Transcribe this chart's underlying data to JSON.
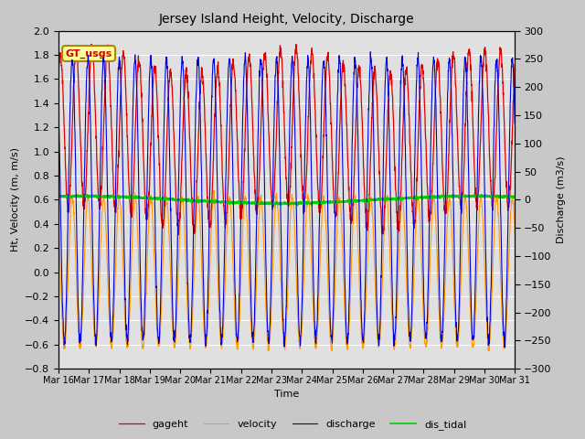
{
  "title": "Jersey Island Height, Velocity, Discharge",
  "xlabel": "Time",
  "ylabel_left": "Ht, Velocity (m, m/s)",
  "ylabel_right": "Discharge (m3/s)",
  "ylim_left": [
    -0.8,
    2.0
  ],
  "ylim_right": [
    -300,
    300
  ],
  "yticks_left": [
    -0.8,
    -0.6,
    -0.4,
    -0.2,
    0.0,
    0.2,
    0.4,
    0.6,
    0.8,
    1.0,
    1.2,
    1.4,
    1.6,
    1.8,
    2.0
  ],
  "yticks_right": [
    -300,
    -250,
    -200,
    -150,
    -100,
    -50,
    0,
    50,
    100,
    150,
    200,
    250,
    300
  ],
  "xtick_labels": [
    "Mar 16",
    "Mar 17",
    "Mar 18",
    "Mar 19",
    "Mar 20",
    "Mar 21",
    "Mar 22",
    "Mar 23",
    "Mar 24",
    "Mar 25",
    "Mar 26",
    "Mar 27",
    "Mar 28",
    "Mar 29",
    "Mar 30",
    "Mar 31"
  ],
  "legend_labels": [
    "gageht",
    "velocity",
    "discharge",
    "dis_tidal"
  ],
  "legend_colors": [
    "#dd0000",
    "#ff9900",
    "#0000dd",
    "#00cc00"
  ],
  "gt_usgs_text": "GT_usgs",
  "gt_usgs_bg": "#ffff99",
  "gt_usgs_border": "#aa8800",
  "gt_usgs_textcolor": "#cc0000",
  "tidal_period_hours": 12.4,
  "fig_bg_color": "#c8c8c8",
  "plot_bg_color": "#e0e0e0"
}
